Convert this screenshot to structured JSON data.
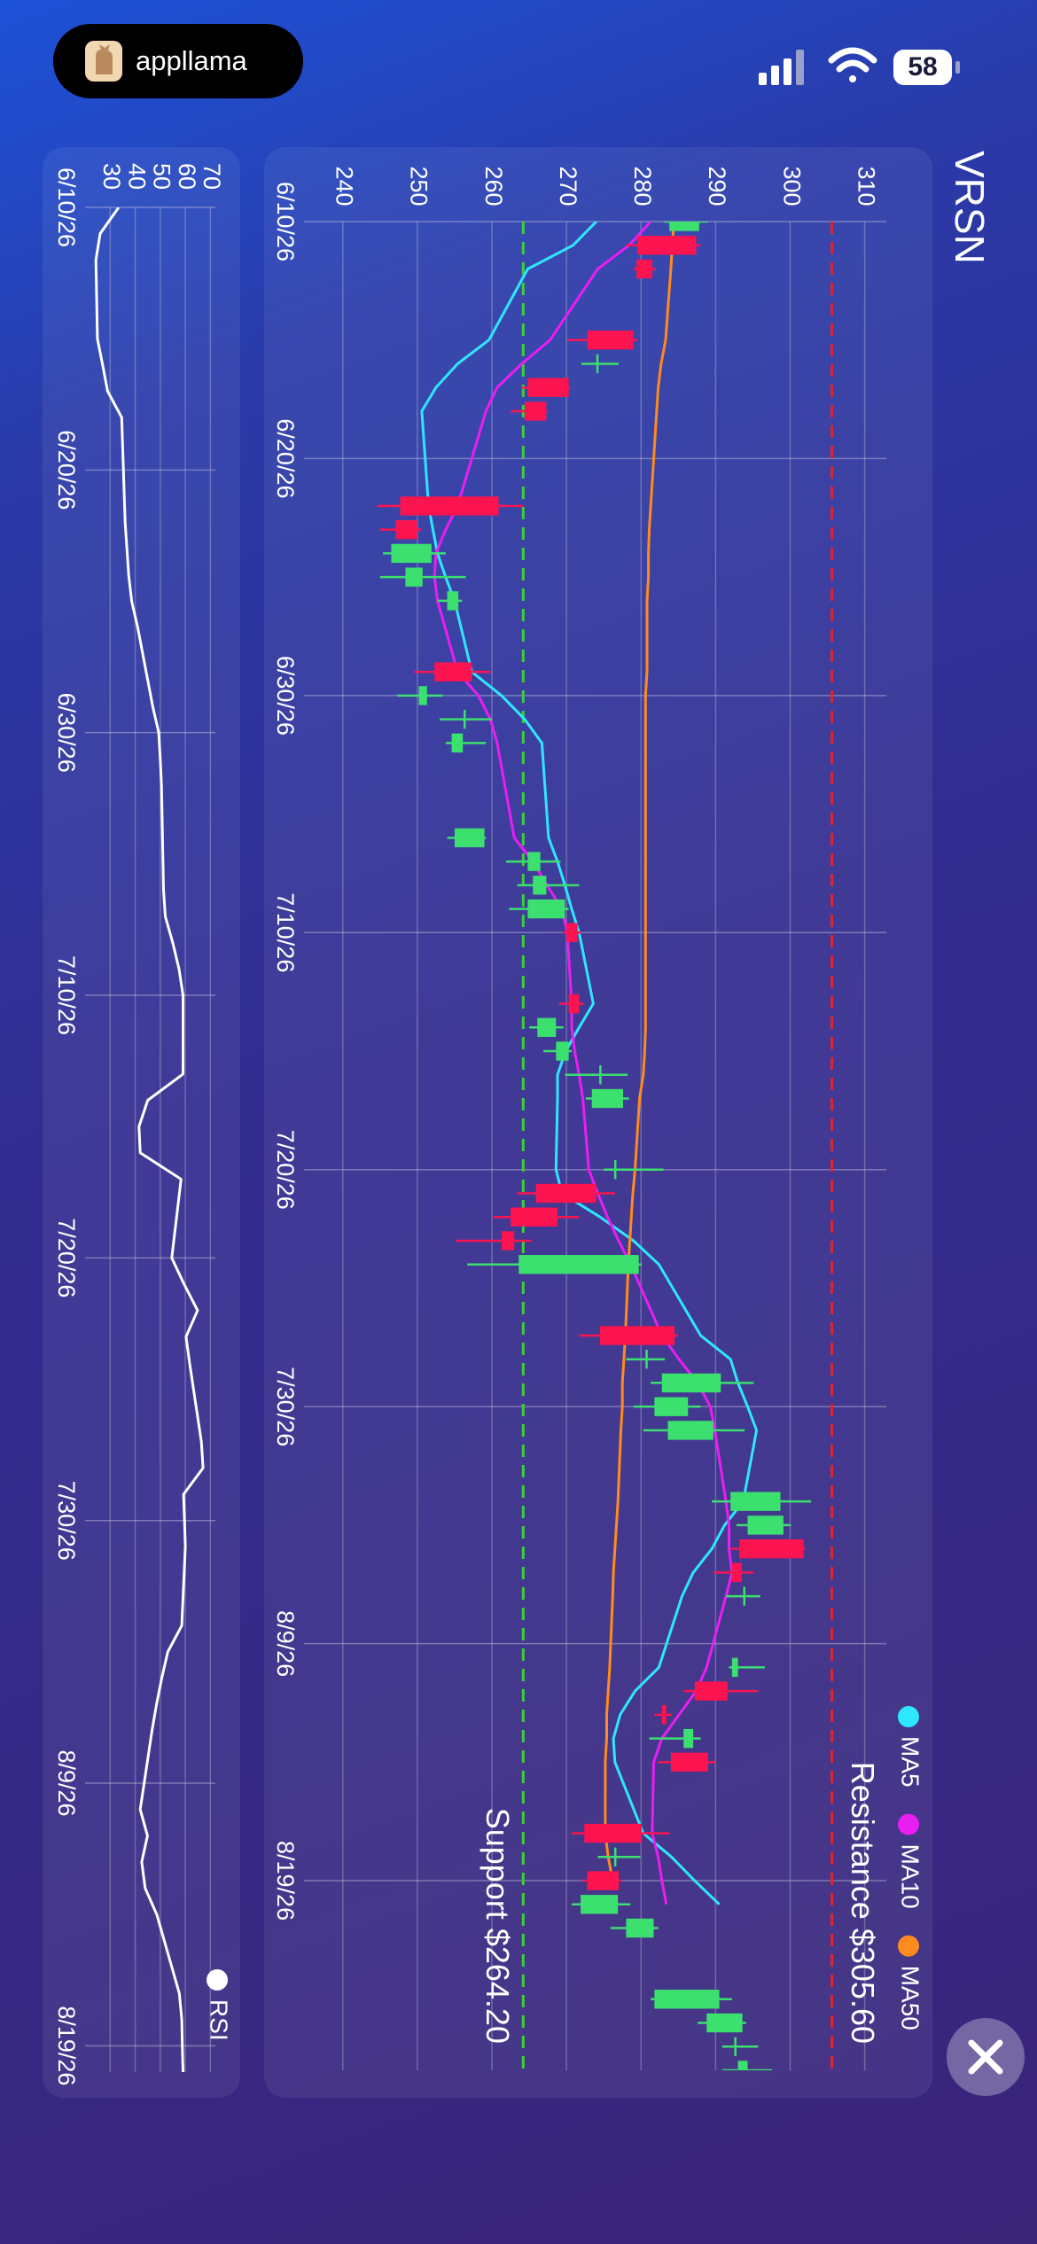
{
  "status_bar": {
    "app": "appllama",
    "battery": "58"
  },
  "chart_data": [
    {
      "type": "candlestick",
      "title": "VRSN",
      "x": [
        "2026-06-10",
        "2026-06-11",
        "2026-06-12",
        "2026-06-15",
        "2026-06-16",
        "2026-06-17",
        "2026-06-18",
        "2026-06-22",
        "2026-06-23",
        "2026-06-24",
        "2026-06-25",
        "2026-06-26",
        "2026-06-29",
        "2026-06-30",
        "2026-07-01",
        "2026-07-02",
        "2026-07-06",
        "2026-07-07",
        "2026-07-08",
        "2026-07-09",
        "2026-07-10",
        "2026-07-13",
        "2026-07-14",
        "2026-07-15",
        "2026-07-16",
        "2026-07-17",
        "2026-07-20",
        "2026-07-21",
        "2026-07-22",
        "2026-07-23",
        "2026-07-24",
        "2026-07-27",
        "2026-07-28",
        "2026-07-29",
        "2026-07-30",
        "2026-07-31",
        "2026-08-03",
        "2026-08-04",
        "2026-08-05",
        "2026-08-06",
        "2026-08-07",
        "2026-08-10",
        "2026-08-11",
        "2026-08-12",
        "2026-08-13",
        "2026-08-14",
        "2026-08-17",
        "2026-08-18",
        "2026-08-19",
        "2026-08-20",
        "2026-08-21",
        "2026-08-24",
        "2026-08-25",
        "2026-08-26",
        "2026-08-27"
      ],
      "open": [
        283.8,
        287.4,
        281.5,
        279,
        274,
        270.3,
        267.3,
        260.9,
        250,
        246.5,
        248.4,
        254,
        257.3,
        250.2,
        256.2,
        254.6,
        255,
        264.8,
        265.5,
        264.8,
        271.5,
        271.7,
        266.1,
        268.6,
        274.4,
        273.4,
        276.4,
        274,
        268.8,
        263,
        263.6,
        284.5,
        280.6,
        282.8,
        281.8,
        283.6,
        292,
        294.3,
        301.8,
        293.5,
        293.7,
        292.2,
        291.6,
        283.4,
        285.7,
        289,
        280.1,
        276.4,
        277,
        271.9,
        278,
        281.8,
        288.8,
        292.5,
        293
      ],
      "high": [
        289,
        288,
        282,
        279.5,
        277,
        270.5,
        267.5,
        264.2,
        250.5,
        253.8,
        256.5,
        256,
        259.8,
        253.4,
        260,
        259.2,
        259.2,
        269.2,
        271.7,
        270.3,
        272,
        272.3,
        269.6,
        270.7,
        278.2,
        278.4,
        283,
        276.5,
        271.7,
        265.3,
        280.1,
        285,
        283.2,
        295.1,
        288,
        293.9,
        302.8,
        300.1,
        302,
        295.1,
        296,
        296.6,
        295.7,
        284.1,
        288,
        290,
        283.8,
        279.9,
        277.4,
        278.6,
        282.3,
        292.2,
        294.1,
        295.7,
        297.6
      ],
      "low": [
        283,
        278,
        279,
        270.1,
        272,
        264,
        262.5,
        244.6,
        245,
        245.4,
        245,
        252.7,
        249.6,
        247.3,
        253,
        253.8,
        254,
        261.9,
        263.4,
        262.3,
        269.5,
        269,
        265,
        266.9,
        269.8,
        272.6,
        275,
        263.4,
        260.2,
        255.2,
        256.7,
        271.7,
        278,
        281.3,
        279,
        280.3,
        289.5,
        292.8,
        292,
        289.7,
        291.4,
        291.8,
        285.7,
        281.8,
        281.1,
        282.3,
        270.7,
        274.2,
        272.2,
        270.7,
        275.9,
        281.3,
        287.6,
        290.9,
        290.9
      ],
      "close": [
        287.8,
        279.5,
        279.4,
        272.8,
        274.3,
        264.8,
        264.4,
        247.7,
        247.1,
        251.9,
        250.7,
        255.5,
        252.3,
        251.3,
        256.4,
        256.1,
        259,
        266.5,
        267.3,
        269.8,
        270,
        270.3,
        268.6,
        270.3,
        274.6,
        277.6,
        276.6,
        265.9,
        262.5,
        261.3,
        279.7,
        274.5,
        280.8,
        290.7,
        286.3,
        289.7,
        298.7,
        299.1,
        293.2,
        292.2,
        293.9,
        293,
        287.2,
        282.8,
        287,
        284,
        272.4,
        276.6,
        272.8,
        276.9,
        281.7,
        290.5,
        293.6,
        292.8,
        294.3
      ],
      "up_color": "#3be06f",
      "down_color": "#fb1450",
      "series": [
        {
          "name": "MA5",
          "color": "#2fe6ff",
          "values": [
            274,
            270.9,
            264.8,
            259.6,
            255.4,
            252.5,
            250.6,
            251.5,
            252.1,
            252.7,
            253.8,
            255,
            257.3,
            261.3,
            264.4,
            266.7,
            267.6,
            268.8,
            269.8,
            270.7,
            271.7,
            273.6,
            271.7,
            269.9,
            268.8,
            268.8,
            268.6,
            269.4,
            274.5,
            279,
            282.4,
            288,
            292,
            293,
            294.3,
            295.5,
            293.7,
            291.2,
            289.5,
            287,
            285.5,
            282.4,
            279.2,
            277.2,
            276.3,
            276.5,
            280.3,
            284.1,
            287.2,
            290.5,
            null,
            null,
            null,
            null,
            null
          ]
        },
        {
          "name": "MA10",
          "color": "#e81ef2",
          "values": [
            281.3,
            278.4,
            274.2,
            267.8,
            264,
            260.7,
            259.2,
            255.4,
            253.8,
            252.5,
            252.3,
            252.7,
            255.4,
            258.2,
            259.8,
            260.7,
            263,
            265.5,
            267.4,
            269.4,
            270.1,
            270.7,
            270.7,
            271.1,
            271.7,
            272.2,
            273,
            274.2,
            275.5,
            277,
            278.6,
            282.8,
            285.1,
            287.6,
            289.3,
            289.9,
            291.4,
            291.8,
            291.8,
            292.2,
            291.4,
            288.8,
            287.4,
            285.1,
            282.8,
            281.7,
            281.5,
            282.3,
            282.8,
            283.4,
            null,
            null,
            null,
            null,
            null
          ]
        },
        {
          "name": "MA50",
          "color": "#ff8a1e",
          "values": [
            284.4,
            284.2,
            284,
            283.3,
            282.7,
            282.3,
            282.1,
            281.3,
            281.1,
            281,
            281,
            280.8,
            280.8,
            280.6,
            280.6,
            280.6,
            280.6,
            280.6,
            280.6,
            280.6,
            280.6,
            280.6,
            280.6,
            280.5,
            280.3,
            279.8,
            279.2,
            278.9,
            278.7,
            278.5,
            278.3,
            277.9,
            277.7,
            277.5,
            277.5,
            277.3,
            276.9,
            276.7,
            276.5,
            276.3,
            276.2,
            275.8,
            275.6,
            275.4,
            275.4,
            275.2,
            275.2,
            275.6,
            276.2,
            null,
            null,
            null,
            null,
            null,
            null
          ]
        }
      ],
      "hlines": [
        {
          "value": 305.6,
          "label": "Resistance $305.60",
          "color": "#e4222e",
          "style": "dashed"
        },
        {
          "value": 264.2,
          "label": "Support $264.20",
          "color": "#3ccf3a",
          "style": "dashed"
        }
      ],
      "xlim": [
        "2026-06-10",
        "2026-08-27"
      ],
      "xticks": [
        {
          "value": "2026-06-10",
          "label": "6/10/26"
        },
        {
          "value": "2026-06-20",
          "label": "6/20/26"
        },
        {
          "value": "2026-06-30",
          "label": "6/30/26"
        },
        {
          "value": "2026-07-10",
          "label": "7/10/26"
        },
        {
          "value": "2026-07-20",
          "label": "7/20/26"
        },
        {
          "value": "2026-07-30",
          "label": "7/30/26"
        },
        {
          "value": "2026-08-09",
          "label": "8/9/26"
        },
        {
          "value": "2026-08-19",
          "label": "8/19/26"
        }
      ],
      "ylim": [
        234.8,
        312.9
      ],
      "yticks": [
        240,
        250,
        260,
        270,
        280,
        290,
        300,
        310
      ],
      "grid": true,
      "legend": "top-right"
    },
    {
      "type": "line",
      "x": [
        "2026-06-10",
        "2026-06-11",
        "2026-06-12",
        "2026-06-15",
        "2026-06-16",
        "2026-06-17",
        "2026-06-18",
        "2026-06-22",
        "2026-06-23",
        "2026-06-24",
        "2026-06-25",
        "2026-06-26",
        "2026-06-29",
        "2026-06-30",
        "2026-07-01",
        "2026-07-02",
        "2026-07-06",
        "2026-07-07",
        "2026-07-08",
        "2026-07-09",
        "2026-07-10",
        "2026-07-13",
        "2026-07-14",
        "2026-07-15",
        "2026-07-16",
        "2026-07-17",
        "2026-07-20",
        "2026-07-21",
        "2026-07-22",
        "2026-07-23",
        "2026-07-24",
        "2026-07-27",
        "2026-07-28",
        "2026-07-29",
        "2026-07-30",
        "2026-07-31",
        "2026-08-03",
        "2026-08-04",
        "2026-08-05",
        "2026-08-06",
        "2026-08-07",
        "2026-08-10",
        "2026-08-11",
        "2026-08-12",
        "2026-08-13",
        "2026-08-14",
        "2026-08-17",
        "2026-08-18",
        "2026-08-19",
        "2026-08-20"
      ],
      "series": [
        {
          "name": "RSI",
          "color": "#ffffff",
          "values": [
            33.4,
            26,
            24.3,
            24.9,
            27,
            29,
            34.6,
            36,
            36.7,
            37.4,
            38.6,
            41,
            47,
            49.4,
            50,
            50.5,
            51.3,
            52,
            55,
            57.5,
            59.1,
            59.1,
            45,
            41.5,
            42,
            58.3,
            54.6,
            59.5,
            64.9,
            60.3,
            61.7,
            66.4,
            67.1,
            59.3,
            59.7,
            60,
            58.6,
            53,
            50.6,
            48.5,
            46.7,
            42,
            44.9,
            42.6,
            44,
            48.6,
            57.6,
            58.6,
            58.8,
            59.1
          ]
        }
      ],
      "xlim": [
        "2026-06-10",
        "2026-08-20"
      ],
      "xticks": [
        {
          "value": "2026-06-10",
          "label": "6/10/26"
        },
        {
          "value": "2026-06-20",
          "label": "6/20/26"
        },
        {
          "value": "2026-06-30",
          "label": "6/30/26"
        },
        {
          "value": "2026-07-10",
          "label": "7/10/26"
        },
        {
          "value": "2026-07-20",
          "label": "7/20/26"
        },
        {
          "value": "2026-07-30",
          "label": "7/30/26"
        },
        {
          "value": "2026-08-09",
          "label": "8/9/26"
        },
        {
          "value": "2026-08-19",
          "label": "8/19/26"
        }
      ],
      "ylim": [
        20,
        72
      ],
      "yticks": [
        30,
        40,
        50,
        60,
        70
      ],
      "grid": true,
      "legend": "top-right"
    }
  ]
}
